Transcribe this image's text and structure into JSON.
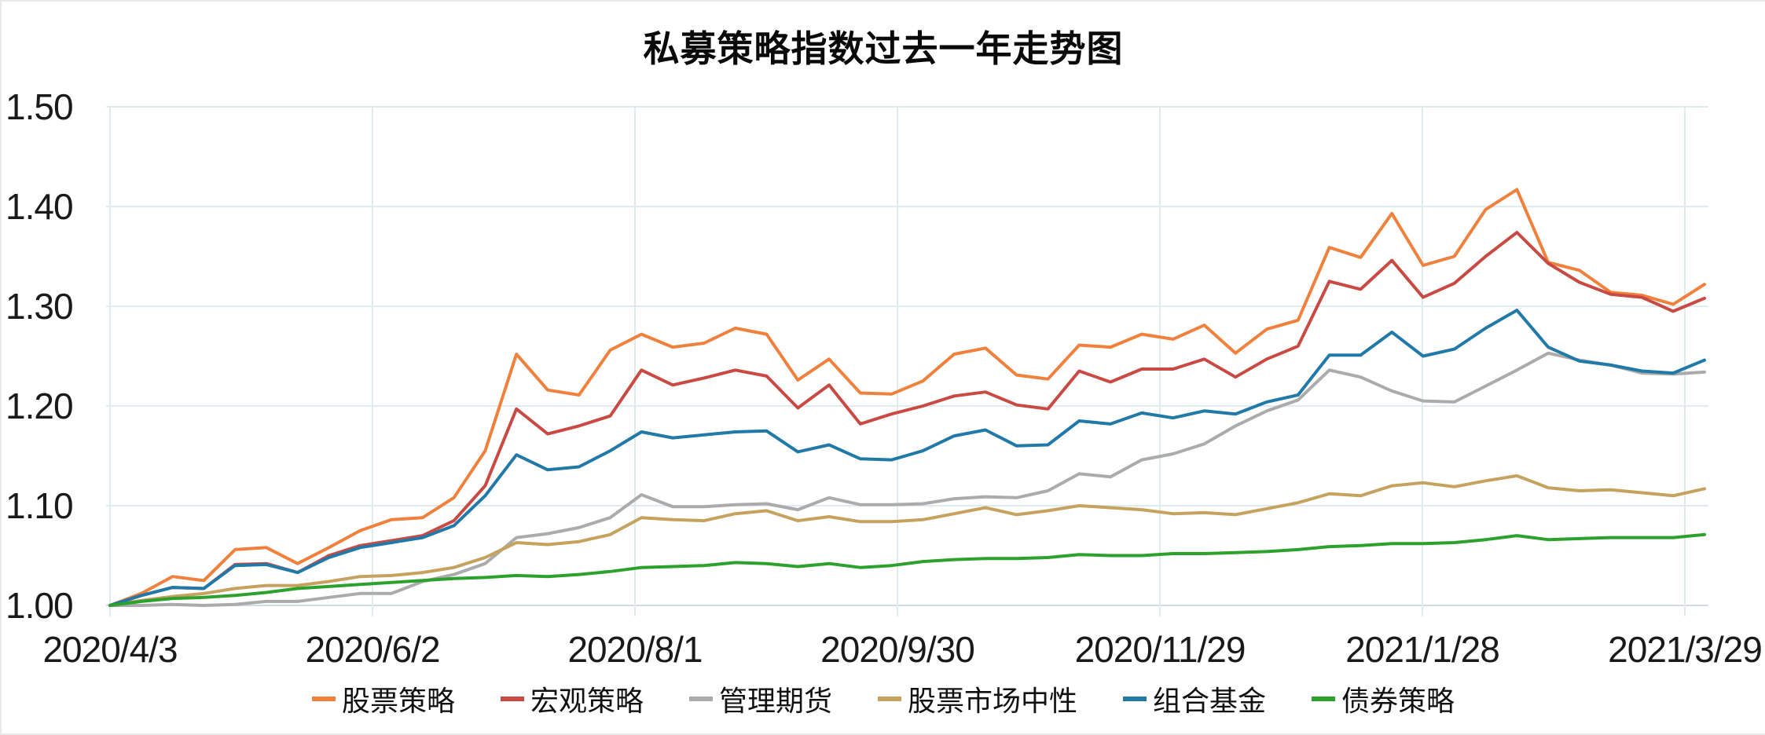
{
  "chart_data": {
    "type": "line",
    "title": "私募策略指数过去一年走势图",
    "xlabel": "",
    "ylabel": "",
    "ylim": [
      1.0,
      1.5
    ],
    "grid": true,
    "legend_position": "bottom",
    "x_tick_labels": [
      "2020/4/3",
      "2020/6/2",
      "2020/8/1",
      "2020/9/30",
      "2020/11/29",
      "2021/1/28",
      "2021/3/29"
    ],
    "y_tick_labels": [
      "1.00",
      "1.10",
      "1.20",
      "1.30",
      "1.40",
      "1.50"
    ],
    "series": [
      {
        "name": "股票策略",
        "color": "#F0813C",
        "values": [
          1.0,
          1.012,
          1.029,
          1.025,
          1.056,
          1.058,
          1.042,
          1.058,
          1.075,
          1.086,
          1.088,
          1.108,
          1.155,
          1.252,
          1.216,
          1.211,
          1.256,
          1.272,
          1.259,
          1.263,
          1.278,
          1.272,
          1.226,
          1.247,
          1.213,
          1.212,
          1.225,
          1.252,
          1.258,
          1.231,
          1.227,
          1.261,
          1.259,
          1.272,
          1.267,
          1.281,
          1.253,
          1.277,
          1.286,
          1.359,
          1.349,
          1.393,
          1.341,
          1.35,
          1.397,
          1.417,
          1.344,
          1.336,
          1.314,
          1.311,
          1.302,
          1.322
        ]
      },
      {
        "name": "宏观策略",
        "color": "#C94A43",
        "values": [
          1.0,
          1.01,
          1.018,
          1.017,
          1.041,
          1.042,
          1.033,
          1.05,
          1.06,
          1.065,
          1.07,
          1.085,
          1.12,
          1.197,
          1.172,
          1.18,
          1.19,
          1.236,
          1.221,
          1.228,
          1.236,
          1.23,
          1.198,
          1.221,
          1.182,
          1.192,
          1.2,
          1.21,
          1.214,
          1.201,
          1.197,
          1.235,
          1.224,
          1.237,
          1.237,
          1.247,
          1.229,
          1.247,
          1.26,
          1.325,
          1.317,
          1.346,
          1.309,
          1.323,
          1.35,
          1.374,
          1.343,
          1.324,
          1.312,
          1.309,
          1.295,
          1.308
        ]
      },
      {
        "name": "管理期货",
        "color": "#ABABAB",
        "values": [
          1.0,
          1.0,
          1.001,
          1.0,
          1.001,
          1.004,
          1.004,
          1.008,
          1.012,
          1.012,
          1.024,
          1.031,
          1.042,
          1.068,
          1.072,
          1.078,
          1.088,
          1.111,
          1.099,
          1.099,
          1.101,
          1.102,
          1.096,
          1.108,
          1.101,
          1.101,
          1.102,
          1.107,
          1.109,
          1.108,
          1.115,
          1.132,
          1.129,
          1.146,
          1.152,
          1.162,
          1.18,
          1.195,
          1.206,
          1.236,
          1.229,
          1.215,
          1.205,
          1.204,
          1.22,
          1.236,
          1.253,
          1.246,
          1.241,
          1.233,
          1.232,
          1.234
        ]
      },
      {
        "name": "股票市场中性",
        "color": "#C5A25D",
        "values": [
          1.0,
          1.005,
          1.009,
          1.012,
          1.017,
          1.02,
          1.02,
          1.024,
          1.029,
          1.03,
          1.033,
          1.038,
          1.048,
          1.063,
          1.061,
          1.064,
          1.071,
          1.088,
          1.086,
          1.085,
          1.092,
          1.095,
          1.085,
          1.089,
          1.084,
          1.084,
          1.086,
          1.092,
          1.098,
          1.091,
          1.095,
          1.1,
          1.098,
          1.096,
          1.092,
          1.093,
          1.091,
          1.097,
          1.103,
          1.112,
          1.11,
          1.12,
          1.123,
          1.119,
          1.125,
          1.13,
          1.118,
          1.115,
          1.116,
          1.113,
          1.11,
          1.117
        ]
      },
      {
        "name": "组合基金",
        "color": "#2179A8",
        "values": [
          1.0,
          1.01,
          1.018,
          1.017,
          1.04,
          1.041,
          1.033,
          1.048,
          1.058,
          1.063,
          1.068,
          1.08,
          1.11,
          1.151,
          1.136,
          1.139,
          1.155,
          1.174,
          1.168,
          1.171,
          1.174,
          1.175,
          1.154,
          1.161,
          1.147,
          1.146,
          1.155,
          1.17,
          1.176,
          1.16,
          1.161,
          1.185,
          1.182,
          1.193,
          1.188,
          1.195,
          1.192,
          1.204,
          1.211,
          1.251,
          1.251,
          1.274,
          1.25,
          1.257,
          1.278,
          1.296,
          1.259,
          1.245,
          1.241,
          1.235,
          1.233,
          1.246
        ]
      },
      {
        "name": "债券策略",
        "color": "#2CA12C",
        "values": [
          1.0,
          1.004,
          1.007,
          1.008,
          1.01,
          1.013,
          1.017,
          1.019,
          1.021,
          1.023,
          1.025,
          1.027,
          1.028,
          1.03,
          1.029,
          1.031,
          1.034,
          1.038,
          1.039,
          1.04,
          1.043,
          1.042,
          1.039,
          1.042,
          1.038,
          1.04,
          1.044,
          1.046,
          1.047,
          1.047,
          1.048,
          1.051,
          1.05,
          1.05,
          1.052,
          1.052,
          1.053,
          1.054,
          1.056,
          1.059,
          1.06,
          1.062,
          1.062,
          1.063,
          1.066,
          1.07,
          1.066,
          1.067,
          1.068,
          1.068,
          1.068,
          1.071
        ]
      }
    ]
  },
  "colors": {
    "background": "#ffffff",
    "grid_line": "#dfeaf1",
    "axis_line": "#cfdde6",
    "tick_label": "#1a1a1a",
    "title_text": "#0a0a0a",
    "frame_border": "#e7e9eb"
  }
}
